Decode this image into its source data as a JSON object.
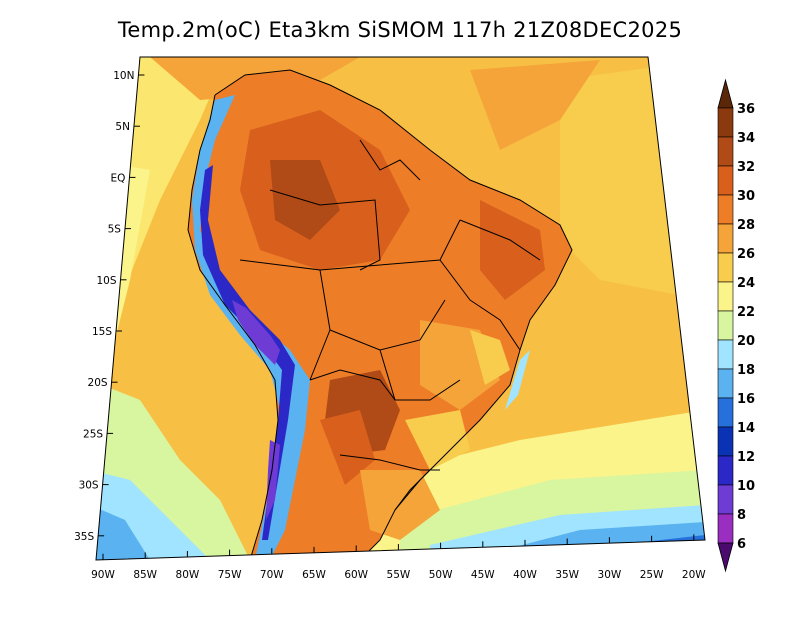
{
  "title": "Temp.2m(oC) Eta3km SiSMOM 117h 21Z08DEC2025",
  "lat_ticks": [
    "10N",
    "5N",
    "EQ",
    "5S",
    "10S",
    "15S",
    "20S",
    "25S",
    "30S",
    "35S"
  ],
  "lon_ticks": [
    "90W",
    "85W",
    "80W",
    "75W",
    "70W",
    "65W",
    "60W",
    "55W",
    "50W",
    "45W",
    "40W",
    "35W",
    "30W",
    "25W",
    "20W"
  ],
  "colorbar": {
    "labels": [
      "36",
      "34",
      "32",
      "30",
      "28",
      "26",
      "24",
      "22",
      "20",
      "18",
      "16",
      "14",
      "12",
      "10",
      "8",
      "6"
    ],
    "colors": [
      "#8b3a0f",
      "#b04a16",
      "#d8601c",
      "#ee7d28",
      "#f4a438",
      "#f8cc4c",
      "#fbf48a",
      "#d8f5a0",
      "#a0e4ff",
      "#5ab2f0",
      "#2670dc",
      "#0a32b4",
      "#2c28c8",
      "#6e3cd4",
      "#9a2ec0",
      "#6a0d96"
    ],
    "top_arrow_color": "#5c2608",
    "bottom_arrow_color": "#4a0a6e"
  }
}
